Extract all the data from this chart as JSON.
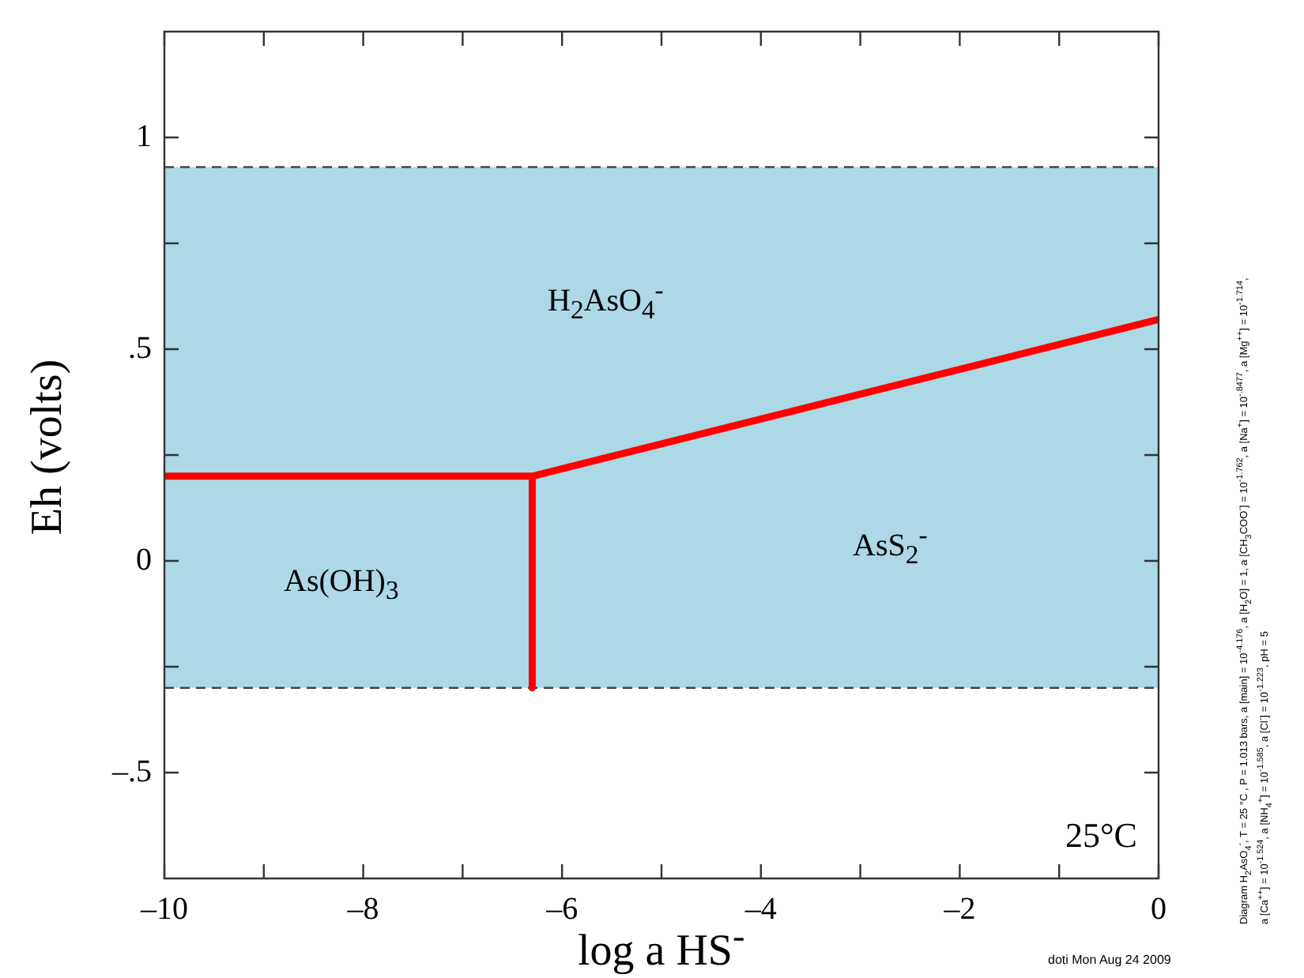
{
  "chart_data": {
    "type": "line",
    "xlabel": "log a HS$^{-}$",
    "ylabel": "Eh (volts)",
    "xlim": [
      -10,
      0
    ],
    "ylim": [
      -0.75,
      1.25
    ],
    "xticks": [
      {
        "value": -10,
        "label": "–10"
      },
      {
        "value": -9,
        "label": null
      },
      {
        "value": -8,
        "label": "–8"
      },
      {
        "value": -7,
        "label": null
      },
      {
        "value": -6,
        "label": "–6"
      },
      {
        "value": -5,
        "label": null
      },
      {
        "value": -4,
        "label": "–4"
      },
      {
        "value": -3,
        "label": null
      },
      {
        "value": -2,
        "label": "–2"
      },
      {
        "value": -1,
        "label": null
      },
      0
    ],
    "yticks": [
      {
        "value": -0.5,
        "label": "–.5"
      },
      {
        "value": -0.25,
        "label": null
      },
      0,
      {
        "value": 0.25,
        "label": null
      },
      {
        "value": 0.5,
        "label": ".5"
      },
      {
        "value": 0.75,
        "label": null
      },
      1
    ],
    "series": [
      {
        "color": "#ff0000",
        "x": [
          -10,
          -6.3,
          0
        ],
        "values": [
          0.2,
          0.2,
          0.57
        ]
      },
      {
        "color": "#ff0000",
        "x": [
          -6.3,
          -6.3
        ],
        "values": [
          0.2,
          -0.3
        ]
      }
    ],
    "bands": [
      {
        "axis": "y",
        "from": -0.3,
        "to": 0.93,
        "color": "#add8e6"
      }
    ],
    "ref_lines": [
      {
        "axis": "y",
        "value": 0.93,
        "color": "#444444",
        "line_style": "dashed"
      },
      {
        "axis": "y",
        "value": -0.3,
        "color": "#444444",
        "line_style": "dashed"
      }
    ],
    "grid": false,
    "legend": false,
    "marker": "none",
    "line_style": "solid",
    "annotations": [
      "H$_{2}$AsO$_{4}$$^{-}$",
      "As(OH)$_{3}$",
      "AsS$_{2}$$^{-}$",
      "25°C",
      "Diagram H$_{2}$AsO$_{4}$$^{-}$, T = 25 °C , P = 1.013 bars, a [main] = 10$^{-4.176}$, a [H$_{2}$O] = 1, a [CH$_{3}$COO$^{-}$] = 10$^{-1.762}$, a [Na$^{+}$] = 10$^{-.8477}$, a [Mg$^{++}$] = 10$^{-1.714}$,",
      "a [Ca$^{++}$] = 10$^{-1.524}$, a [NH$_{4}$$^{+}$] = 10$^{-1.585}$, a [Cl$^{-}$] = 10$^{-1.223}$, pH = 5",
      "doti Mon Aug 24 2009"
    ]
  }
}
